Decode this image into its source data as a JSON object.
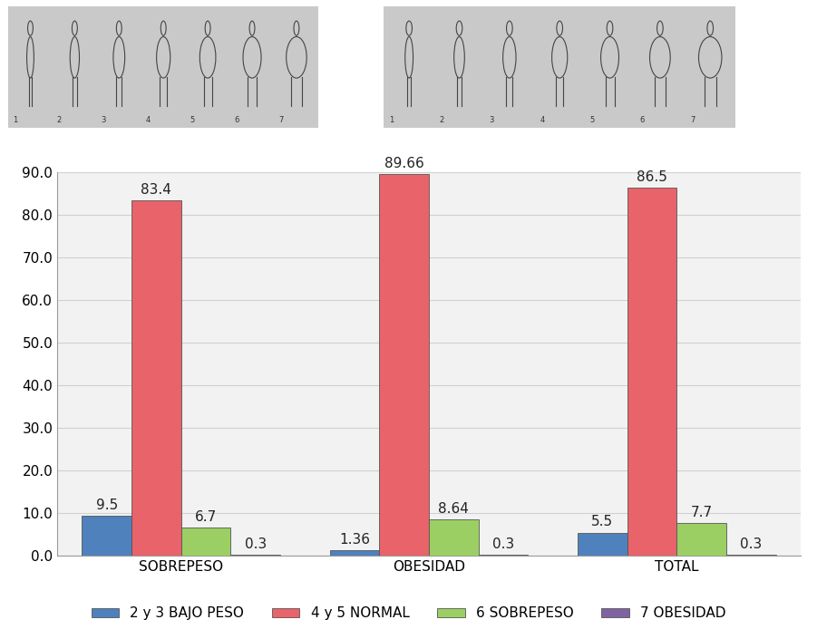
{
  "silhouette_scales": [
    {
      "numbers": [
        1,
        2,
        3,
        4,
        5,
        6,
        7
      ]
    },
    {
      "numbers": [
        1,
        2,
        3,
        4,
        5,
        6,
        7
      ]
    }
  ],
  "chart_data": {
    "type": "bar",
    "categories": [
      "SOBREPESO",
      "OBESIDAD",
      "TOTAL"
    ],
    "series": [
      {
        "name": "2 y 3 BAJO PESO",
        "color": "#4f81bd",
        "values": [
          9.5,
          1.36,
          5.5
        ]
      },
      {
        "name": "4 y 5 NORMAL",
        "color": "#e8636a",
        "values": [
          83.4,
          89.66,
          86.5
        ]
      },
      {
        "name": "6 SOBREPESO",
        "color": "#9bcf63",
        "values": [
          6.7,
          8.64,
          7.7
        ]
      },
      {
        "name": "7 OBESIDAD",
        "color": "#8064a2",
        "values": [
          0.3,
          0.3,
          0.3
        ]
      }
    ],
    "ylim": [
      0,
      90
    ],
    "yticks": [
      {
        "value": 0,
        "label": "0.0"
      },
      {
        "value": 10,
        "label": "10.0"
      },
      {
        "value": 20,
        "label": "20.0"
      },
      {
        "value": 30,
        "label": "30.0"
      },
      {
        "value": 40,
        "label": "40.0"
      },
      {
        "value": 50,
        "label": "50.0"
      },
      {
        "value": 60,
        "label": "60.0"
      },
      {
        "value": 70,
        "label": "70.0"
      },
      {
        "value": 80,
        "label": "80.0"
      },
      {
        "value": 90,
        "label": "90.0"
      }
    ],
    "grid": true,
    "legend": "lower center",
    "data_labels": true
  }
}
